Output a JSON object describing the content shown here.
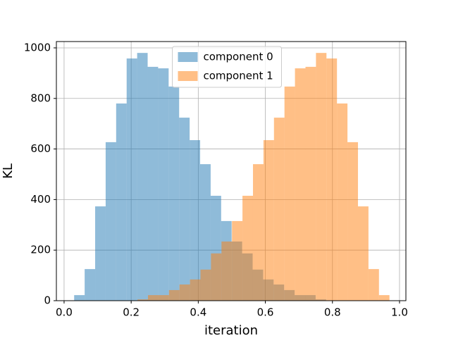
{
  "chart_data": {
    "type": "histogram",
    "xlabel": "iteration",
    "ylabel": "KL",
    "series": [
      {
        "name": "component 0",
        "color": "#1f77b4",
        "bins": [
          0.03,
          0.0613,
          0.0926,
          0.1239,
          0.1552,
          0.1865,
          0.2178,
          0.2491,
          0.2804,
          0.3117,
          0.343,
          0.3743,
          0.4056,
          0.4369,
          0.4682,
          0.4995,
          0.5308,
          0.5621,
          0.5934,
          0.6247,
          0.656,
          0.6873,
          0.7186,
          0.7499,
          0.7812
        ],
        "values": [
          22,
          125,
          373,
          627,
          780,
          958,
          980,
          925,
          919,
          847,
          724,
          635,
          540,
          415,
          315,
          234,
          187,
          123,
          84,
          64,
          42,
          22,
          22,
          5
        ]
      },
      {
        "name": "component 1",
        "color": "#ff7f0e",
        "bins": [
          0.2188,
          0.2501,
          0.2814,
          0.3127,
          0.344,
          0.3753,
          0.4066,
          0.4379,
          0.4692,
          0.5005,
          0.5318,
          0.5631,
          0.5944,
          0.6257,
          0.657,
          0.6883,
          0.7196,
          0.7509,
          0.7822,
          0.8135,
          0.8448,
          0.8761,
          0.9074,
          0.9387,
          0.97
        ],
        "values": [
          5,
          22,
          22,
          42,
          64,
          84,
          123,
          187,
          234,
          315,
          415,
          540,
          635,
          724,
          847,
          919,
          925,
          980,
          958,
          780,
          627,
          373,
          125,
          22
        ]
      }
    ],
    "alpha": 0.5,
    "xlim": [
      -0.023,
      1.019
    ],
    "xticks": [
      {
        "value": 0,
        "label": "0.0"
      },
      0.2,
      0.4,
      0.6,
      0.8,
      {
        "value": 1,
        "label": "1.0"
      }
    ],
    "ylim": [
      0,
      1025
    ],
    "yticks": [
      0,
      200,
      400,
      600,
      800,
      1000
    ],
    "grid": true,
    "legend": "upper center"
  }
}
